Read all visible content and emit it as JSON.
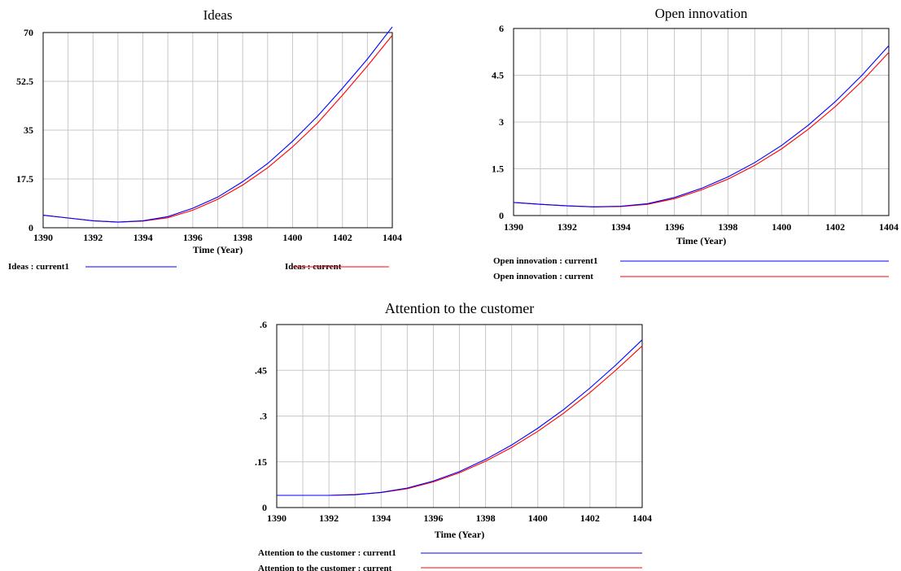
{
  "chart_data": [
    {
      "type": "line",
      "title": "Ideas",
      "xlabel": "Time (Year)",
      "ylabel": "",
      "xlim": [
        1390,
        1404
      ],
      "ylim": [
        0,
        70
      ],
      "x_ticks": [
        "1390",
        "1392",
        "1394",
        "1396",
        "1398",
        "1400",
        "1402",
        "1404"
      ],
      "y_ticks": [
        "0",
        "17.5",
        "35",
        "52.5",
        "70"
      ],
      "grid": true,
      "x": [
        1390,
        1391,
        1392,
        1393,
        1394,
        1395,
        1396,
        1397,
        1398,
        1399,
        1400,
        1401,
        1402,
        1403,
        1404
      ],
      "series": [
        {
          "name": "Ideas : current1",
          "color": "#0000ff",
          "values": [
            4.5,
            3.5,
            2.5,
            2.0,
            2.5,
            4.0,
            7.0,
            11.0,
            16.5,
            23.0,
            31.0,
            40.0,
            50.0,
            60.5,
            72.0
          ]
        },
        {
          "name": "Ideas : current",
          "color": "#ff0000",
          "values": [
            4.5,
            3.5,
            2.5,
            2.0,
            2.4,
            3.6,
            6.3,
            10.2,
            15.3,
            21.5,
            29.0,
            37.5,
            47.5,
            58.0,
            69.0
          ]
        }
      ],
      "legend": "bottom"
    },
    {
      "type": "line",
      "title": "Open innovation",
      "xlabel": "Time (Year)",
      "ylabel": "",
      "xlim": [
        1390,
        1404
      ],
      "ylim": [
        0,
        6
      ],
      "x_ticks": [
        "1390",
        "1392",
        "1394",
        "1396",
        "1398",
        "1400",
        "1402",
        "1404"
      ],
      "y_ticks": [
        "0",
        "1.5",
        "3",
        "4.5",
        "6"
      ],
      "grid": true,
      "x": [
        1390,
        1391,
        1392,
        1393,
        1394,
        1395,
        1396,
        1397,
        1398,
        1399,
        1400,
        1401,
        1402,
        1403,
        1404
      ],
      "series": [
        {
          "name": "Open innovation : current1",
          "color": "#0000ff",
          "values": [
            0.42,
            0.36,
            0.31,
            0.28,
            0.3,
            0.38,
            0.58,
            0.87,
            1.24,
            1.7,
            2.25,
            2.9,
            3.65,
            4.5,
            5.45
          ]
        },
        {
          "name": "Open innovation : current",
          "color": "#ff0000",
          "values": [
            0.42,
            0.36,
            0.31,
            0.28,
            0.29,
            0.36,
            0.54,
            0.82,
            1.17,
            1.61,
            2.14,
            2.77,
            3.49,
            4.31,
            5.23
          ]
        }
      ],
      "legend": "bottom"
    },
    {
      "type": "line",
      "title": "Attention to the customer",
      "xlabel": "Time (Year)",
      "ylabel": "",
      "xlim": [
        1390,
        1404
      ],
      "ylim": [
        0,
        0.6
      ],
      "x_ticks": [
        "1390",
        "1392",
        "1394",
        "1396",
        "1398",
        "1400",
        "1402",
        "1404"
      ],
      "y_ticks": [
        "0",
        ".15",
        ".3",
        ".45",
        ".6"
      ],
      "grid": true,
      "x": [
        1390,
        1391,
        1392,
        1393,
        1394,
        1395,
        1396,
        1397,
        1398,
        1399,
        1400,
        1401,
        1402,
        1403,
        1404
      ],
      "series": [
        {
          "name": "Attention to the customer : current1",
          "color": "#0000ff",
          "values": [
            0.04,
            0.04,
            0.04,
            0.042,
            0.05,
            0.064,
            0.087,
            0.118,
            0.158,
            0.205,
            0.26,
            0.322,
            0.392,
            0.468,
            0.55
          ]
        },
        {
          "name": "Attention to the customer : current",
          "color": "#ff0000",
          "values": [
            0.04,
            0.04,
            0.04,
            0.043,
            0.049,
            0.062,
            0.084,
            0.114,
            0.152,
            0.197,
            0.25,
            0.31,
            0.377,
            0.451,
            0.53
          ]
        }
      ],
      "legend": "bottom"
    }
  ]
}
